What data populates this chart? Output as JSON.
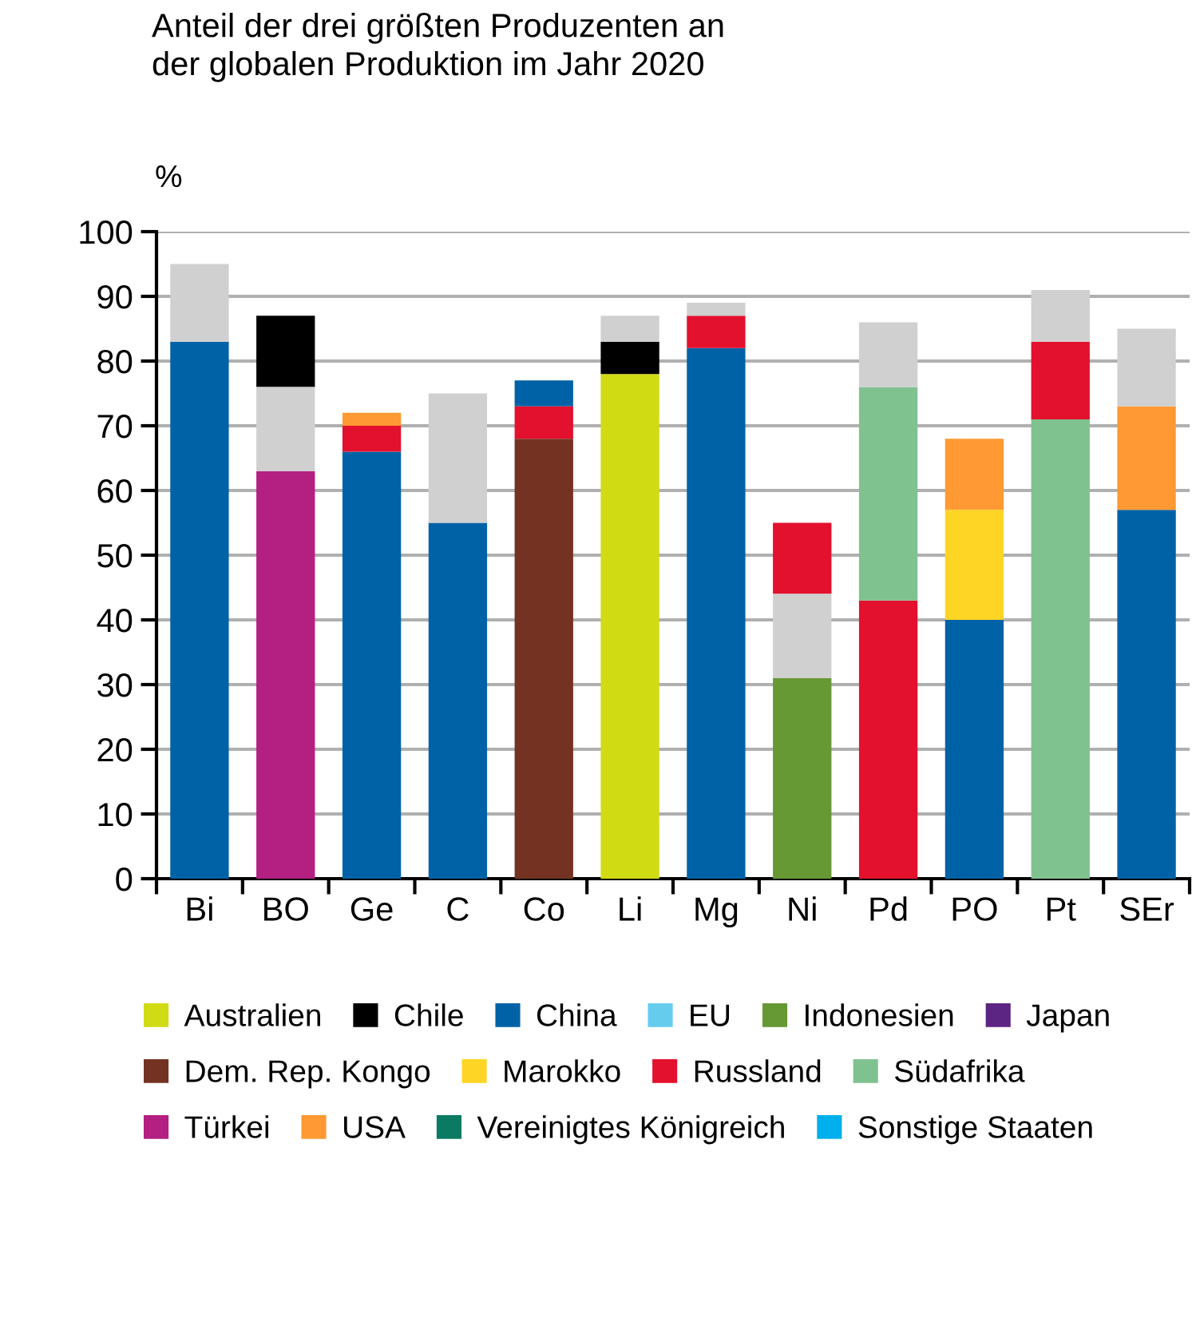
{
  "chart_data": {
    "type": "bar",
    "title": "Anteil der drei größten Produzenten an\nder globalen Produktion im Jahr 2020",
    "ylabel": "%",
    "categories": [
      "Bi",
      "BO",
      "Ge",
      "C",
      "Co",
      "Li",
      "Mg",
      "Ni",
      "Pd",
      "PO",
      "Pt",
      "SEr"
    ],
    "ylim": [
      0,
      100
    ],
    "yticks": [
      0,
      10,
      20,
      30,
      40,
      50,
      60,
      70,
      80,
      90,
      100
    ],
    "grid": "y",
    "legend": "bottom",
    "series": [
      {
        "name": "Australien",
        "color": "#d1db14",
        "values": [
          null,
          null,
          null,
          null,
          null,
          78,
          null,
          null,
          null,
          null,
          null,
          null
        ],
        "base": [
          null,
          null,
          null,
          null,
          null,
          0,
          null,
          null,
          null,
          null,
          null,
          null
        ]
      },
      {
        "name": "Chile",
        "color": "#000000",
        "values": [
          null,
          11,
          null,
          null,
          null,
          5,
          null,
          null,
          null,
          null,
          null,
          null
        ],
        "base": [
          null,
          76,
          null,
          null,
          null,
          78,
          null,
          null,
          null,
          null,
          null,
          null
        ]
      },
      {
        "name": "China",
        "color": "#0062a6",
        "values": [
          83,
          null,
          66,
          55,
          4,
          null,
          82,
          null,
          null,
          40,
          null,
          57
        ],
        "base": [
          0,
          null,
          0,
          0,
          73,
          null,
          0,
          null,
          null,
          0,
          null,
          0
        ]
      },
      {
        "name": "EU",
        "color": "#66ccee",
        "values": [
          null,
          null,
          null,
          null,
          null,
          null,
          null,
          null,
          null,
          null,
          null,
          null
        ],
        "base": [
          null,
          null,
          null,
          null,
          null,
          null,
          null,
          null,
          null,
          null,
          null,
          null
        ]
      },
      {
        "name": "Indonesien",
        "color": "#669933",
        "values": [
          null,
          null,
          null,
          null,
          null,
          null,
          null,
          31,
          null,
          null,
          null,
          null
        ],
        "base": [
          null,
          null,
          null,
          null,
          null,
          null,
          null,
          0,
          null,
          null,
          null,
          null
        ]
      },
      {
        "name": "Japan",
        "color": "#5c2483",
        "values": [
          null,
          null,
          null,
          null,
          null,
          null,
          null,
          null,
          null,
          null,
          null,
          null
        ],
        "base": [
          null,
          null,
          null,
          null,
          null,
          null,
          null,
          null,
          null,
          null,
          null,
          null
        ]
      },
      {
        "name": "Dem. Rep. Kongo",
        "color": "#743322",
        "values": [
          null,
          null,
          null,
          null,
          68,
          null,
          null,
          null,
          null,
          null,
          null,
          null
        ],
        "base": [
          null,
          null,
          null,
          null,
          0,
          null,
          null,
          null,
          null,
          null,
          null,
          null
        ]
      },
      {
        "name": "Marokko",
        "color": "#fed524",
        "values": [
          null,
          null,
          null,
          null,
          null,
          null,
          null,
          null,
          null,
          17,
          null,
          null
        ],
        "base": [
          null,
          null,
          null,
          null,
          null,
          null,
          null,
          null,
          null,
          40,
          null,
          null
        ]
      },
      {
        "name": "Russland",
        "color": "#e3102e",
        "values": [
          null,
          null,
          4,
          null,
          5,
          null,
          5,
          11,
          43,
          null,
          12,
          null
        ],
        "base": [
          null,
          null,
          66,
          null,
          68,
          null,
          82,
          44,
          0,
          null,
          71,
          null
        ]
      },
      {
        "name": "Südafrika",
        "color": "#80c190",
        "values": [
          null,
          null,
          null,
          null,
          null,
          null,
          null,
          null,
          33,
          null,
          71,
          null
        ],
        "base": [
          null,
          null,
          null,
          null,
          null,
          null,
          null,
          null,
          43,
          null,
          0,
          null
        ]
      },
      {
        "name": "Türkei",
        "color": "#b41f82",
        "values": [
          null,
          63,
          null,
          null,
          null,
          null,
          null,
          null,
          null,
          null,
          null,
          null
        ],
        "base": [
          null,
          0,
          null,
          null,
          null,
          null,
          null,
          null,
          null,
          null,
          null,
          null
        ]
      },
      {
        "name": "USA",
        "color": "#ff9933",
        "values": [
          null,
          null,
          2,
          null,
          null,
          null,
          null,
          null,
          null,
          11,
          null,
          16
        ],
        "base": [
          null,
          null,
          70,
          null,
          null,
          null,
          null,
          null,
          null,
          57,
          null,
          57
        ]
      },
      {
        "name": "Vereinigtes Königreich",
        "color": "#0a7a63",
        "values": [
          null,
          null,
          null,
          null,
          null,
          null,
          null,
          null,
          null,
          null,
          null,
          null
        ],
        "base": [
          null,
          null,
          null,
          null,
          null,
          null,
          null,
          null,
          null,
          null,
          null,
          null
        ]
      },
      {
        "name": "Sonstige Staaten",
        "color": "#00b0ec",
        "values": [
          null,
          null,
          null,
          null,
          null,
          null,
          null,
          null,
          null,
          null,
          null,
          null
        ],
        "base": [
          null,
          null,
          null,
          null,
          null,
          null,
          null,
          null,
          null,
          null,
          null,
          null
        ]
      },
      {
        "color": "#d0d0d0",
        "values": [
          12,
          13,
          null,
          20,
          null,
          4,
          2,
          13,
          10,
          null,
          8,
          12
        ],
        "base": [
          83,
          63,
          null,
          55,
          null,
          83,
          87,
          31,
          76,
          null,
          83,
          73
        ]
      }
    ]
  }
}
